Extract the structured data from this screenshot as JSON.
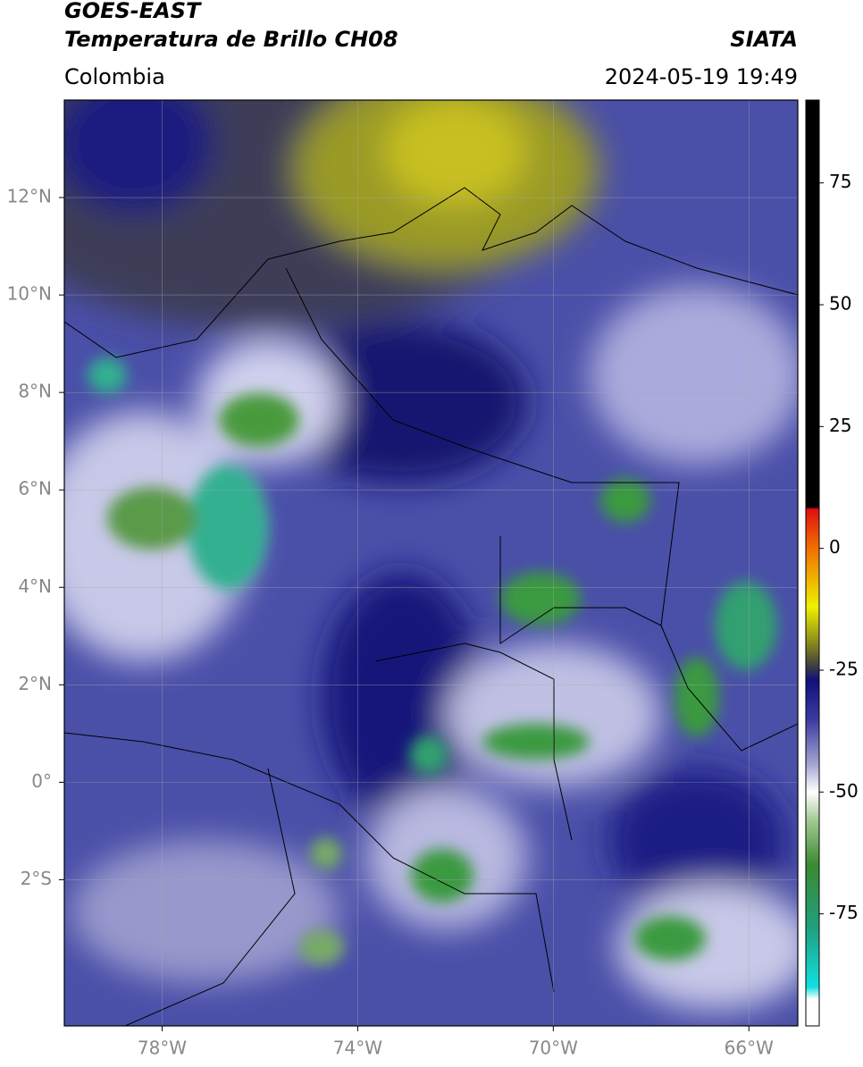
{
  "header": {
    "title": "GOES-EAST",
    "subtitle": "Temperatura de Brillo CH08",
    "source": "SIATA",
    "region": "Colombia",
    "datetime": "2024-05-19 19:49"
  },
  "map": {
    "xlim": [
      -80,
      -65
    ],
    "ylim": [
      -5,
      14
    ],
    "xticks": [
      {
        "value": -78,
        "label": "78°W"
      },
      {
        "value": -74,
        "label": "74°W"
      },
      {
        "value": -70,
        "label": "70°W"
      },
      {
        "value": -66,
        "label": "66°W"
      }
    ],
    "yticks": [
      {
        "value": 12,
        "label": "12°N"
      },
      {
        "value": 10,
        "label": "10°N"
      },
      {
        "value": 8,
        "label": "8°N"
      },
      {
        "value": 6,
        "label": "6°N"
      },
      {
        "value": 4,
        "label": "4°N"
      },
      {
        "value": 2,
        "label": "2°N"
      },
      {
        "value": 0,
        "label": "0°"
      },
      {
        "value": -2,
        "label": "2°S"
      }
    ],
    "grid": true
  },
  "colorbar": {
    "clim": [
      -98,
      92
    ],
    "ticks": [
      75,
      50,
      25,
      0,
      -25,
      -50,
      -75
    ],
    "colormap": [
      [
        92,
        "#000000"
      ],
      [
        8.5,
        "#000000"
      ],
      [
        8,
        "#e01010"
      ],
      [
        0,
        "#f07000"
      ],
      [
        -12,
        "#f0f000"
      ],
      [
        -20,
        "#808020"
      ],
      [
        -24,
        "#404040"
      ],
      [
        -27,
        "#10107a"
      ],
      [
        -35,
        "#3a3aa0"
      ],
      [
        -44,
        "#a0a0d0"
      ],
      [
        -50,
        "#ffffff"
      ],
      [
        -56,
        "#a0c890"
      ],
      [
        -65,
        "#3a8a30"
      ],
      [
        -78,
        "#20a080"
      ],
      [
        -90,
        "#10e0e0"
      ],
      [
        -92.5,
        "#ffffff"
      ],
      [
        -98,
        "#ffffff"
      ]
    ]
  }
}
